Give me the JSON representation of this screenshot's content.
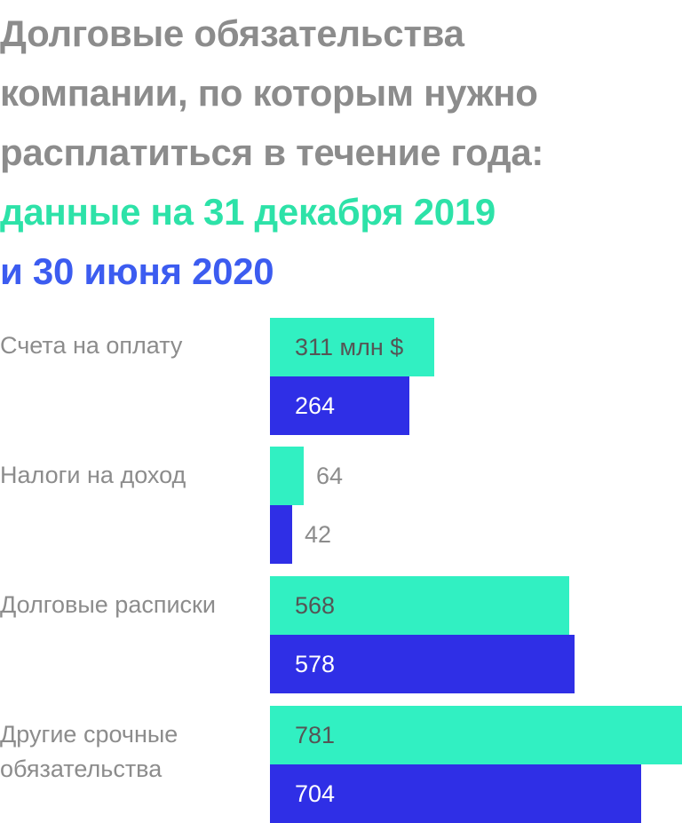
{
  "chart_data": {
    "type": "bar",
    "orientation": "horizontal",
    "title_lines": [
      {
        "text": "Долговые обязательства",
        "color": "#8c8c8c"
      },
      {
        "text": "компании, по которым нужно",
        "color": "#8c8c8c"
      },
      {
        "text": "расплатиться в течение года:",
        "color": "#8c8c8c"
      },
      {
        "text": "данные на 31 декабря 2019",
        "color": "#2de2a8"
      },
      {
        "text": "и 30 июня 2020",
        "color": "#3c5cf0"
      }
    ],
    "categories": [
      {
        "label_lines": [
          "Счета на оплату"
        ]
      },
      {
        "label_lines": [
          "Налоги на доход"
        ]
      },
      {
        "label_lines": [
          "Долговые расписки"
        ]
      },
      {
        "label_lines": [
          "Другие срочные",
          "обязательства"
        ]
      }
    ],
    "series": [
      {
        "name": "31 декабря 2019",
        "color": "#31f0c2",
        "values": [
          311,
          64,
          568,
          781
        ],
        "value_labels": [
          "311 млн $",
          "64",
          "568",
          "781"
        ]
      },
      {
        "name": "30 июня 2020",
        "color": "#2f2fe6",
        "values": [
          264,
          42,
          578,
          704
        ],
        "value_labels": [
          "264",
          "42",
          "578",
          "704"
        ]
      }
    ],
    "unit": "млн $",
    "xlim": [
      0,
      781
    ],
    "grid": false,
    "legend": "none"
  }
}
